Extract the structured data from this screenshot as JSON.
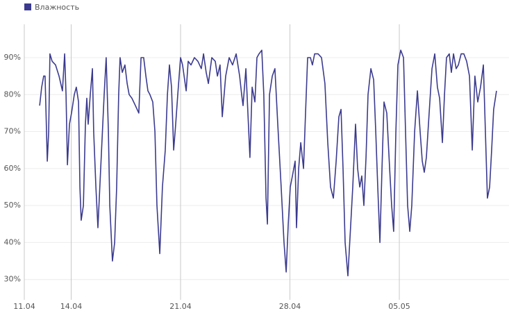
{
  "chart_data": {
    "type": "line",
    "series": [
      {
        "name": "Влажность",
        "color": "#3b3a8f",
        "values": [
          77,
          82,
          85,
          85,
          62,
          70,
          91,
          89,
          88,
          85,
          81,
          91,
          80,
          61,
          72,
          75,
          80,
          82,
          78,
          55,
          46,
          50,
          72,
          79,
          72,
          80,
          87,
          70,
          55,
          44,
          60,
          72,
          80,
          90,
          70,
          50,
          35,
          40,
          55,
          80,
          90,
          86,
          88,
          83,
          80,
          79,
          77,
          75,
          90,
          90,
          85,
          81,
          80,
          78,
          70,
          50,
          37,
          55,
          65,
          80,
          88,
          82,
          65,
          72,
          80,
          90,
          88,
          81,
          89,
          88,
          90,
          89,
          87,
          91,
          86,
          83,
          90,
          89,
          85,
          88,
          74,
          85,
          90,
          88,
          91,
          85,
          80,
          77,
          87,
          75,
          63,
          82,
          78,
          90,
          91,
          92,
          80,
          52,
          45,
          80,
          85,
          87,
          72,
          55,
          40,
          32,
          45,
          55,
          58,
          62,
          44,
          60,
          67,
          60,
          75,
          90,
          90,
          88,
          91,
          91,
          90,
          83,
          67,
          55,
          52,
          62,
          74,
          76,
          60,
          40,
          31,
          45,
          55,
          72,
          60,
          55,
          58,
          50,
          63,
          80,
          87,
          84,
          70,
          55,
          40,
          60,
          78,
          75,
          60,
          50,
          43,
          70,
          88,
          92,
          90,
          70,
          50,
          43,
          50,
          70,
          81,
          70,
          62,
          59,
          63,
          75,
          87,
          91,
          82,
          79,
          67,
          80,
          90,
          91,
          86,
          91,
          87,
          88,
          91,
          91,
          89,
          85,
          65,
          85,
          78,
          82,
          88,
          70,
          52,
          55,
          65,
          76,
          81
        ]
      }
    ],
    "x": [
      0.98,
      1.11,
      1.24,
      1.33,
      1.47,
      1.56,
      1.64,
      1.78,
      2.0,
      2.22,
      2.44,
      2.58,
      2.67,
      2.76,
      2.89,
      3.02,
      3.2,
      3.33,
      3.47,
      3.56,
      3.64,
      3.78,
      3.91,
      4.0,
      4.09,
      4.22,
      4.36,
      4.44,
      4.58,
      4.71,
      4.89,
      5.02,
      5.11,
      5.24,
      5.38,
      5.47,
      5.64,
      5.78,
      5.91,
      6.04,
      6.13,
      6.27,
      6.44,
      6.58,
      6.71,
      6.89,
      7.11,
      7.33,
      7.47,
      7.64,
      7.78,
      7.91,
      8.04,
      8.22,
      8.36,
      8.49,
      8.67,
      8.84,
      9.02,
      9.16,
      9.29,
      9.42,
      9.56,
      9.69,
      9.82,
      10.0,
      10.13,
      10.36,
      10.49,
      10.67,
      10.89,
      11.11,
      11.33,
      11.47,
      11.64,
      11.78,
      12.0,
      12.22,
      12.36,
      12.53,
      12.67,
      12.89,
      13.11,
      13.33,
      13.56,
      13.78,
      13.91,
      14.0,
      14.18,
      14.31,
      14.44,
      14.58,
      14.76,
      14.89,
      15.02,
      15.2,
      15.33,
      15.47,
      15.56,
      15.69,
      15.87,
      16.04,
      16.22,
      16.44,
      16.62,
      16.76,
      16.89,
      17.02,
      17.16,
      17.33,
      17.42,
      17.56,
      17.69,
      17.87,
      18.0,
      18.13,
      18.31,
      18.44,
      18.58,
      18.8,
      19.02,
      19.24,
      19.42,
      19.6,
      19.78,
      19.96,
      20.13,
      20.27,
      20.4,
      20.53,
      20.71,
      20.89,
      21.02,
      21.2,
      21.33,
      21.47,
      21.6,
      21.73,
      21.87,
      22.0,
      22.18,
      22.36,
      22.49,
      22.62,
      22.76,
      22.89,
      23.02,
      23.2,
      23.38,
      23.51,
      23.64,
      23.78,
      23.91,
      24.09,
      24.27,
      24.4,
      24.53,
      24.67,
      24.8,
      24.98,
      25.16,
      25.33,
      25.47,
      25.6,
      25.73,
      25.91,
      26.09,
      26.27,
      26.44,
      26.58,
      26.76,
      26.89,
      27.02,
      27.2,
      27.33,
      27.47,
      27.64,
      27.78,
      27.96,
      28.13,
      28.31,
      28.49,
      28.67,
      28.84,
      29.02,
      29.2,
      29.38,
      29.51,
      29.64,
      29.78,
      29.91,
      30.04,
      30.22
    ],
    "xlim": [
      0,
      31.02
    ],
    "xticks": [
      {
        "value": 0,
        "label": "11.04"
      },
      {
        "value": 3,
        "label": "14.04"
      },
      {
        "value": 10,
        "label": "21.04"
      },
      {
        "value": 17,
        "label": "28.04"
      },
      {
        "value": 24,
        "label": "05.05"
      }
    ],
    "ylim": [
      23,
      99
    ],
    "yticks": [
      {
        "value": 30,
        "label": "30%"
      },
      {
        "value": 40,
        "label": "40%"
      },
      {
        "value": 50,
        "label": "50%"
      },
      {
        "value": 60,
        "label": "60%"
      },
      {
        "value": 70,
        "label": "70%"
      },
      {
        "value": 80,
        "label": "80%"
      },
      {
        "value": 90,
        "label": "90%"
      }
    ],
    "grid": true
  }
}
